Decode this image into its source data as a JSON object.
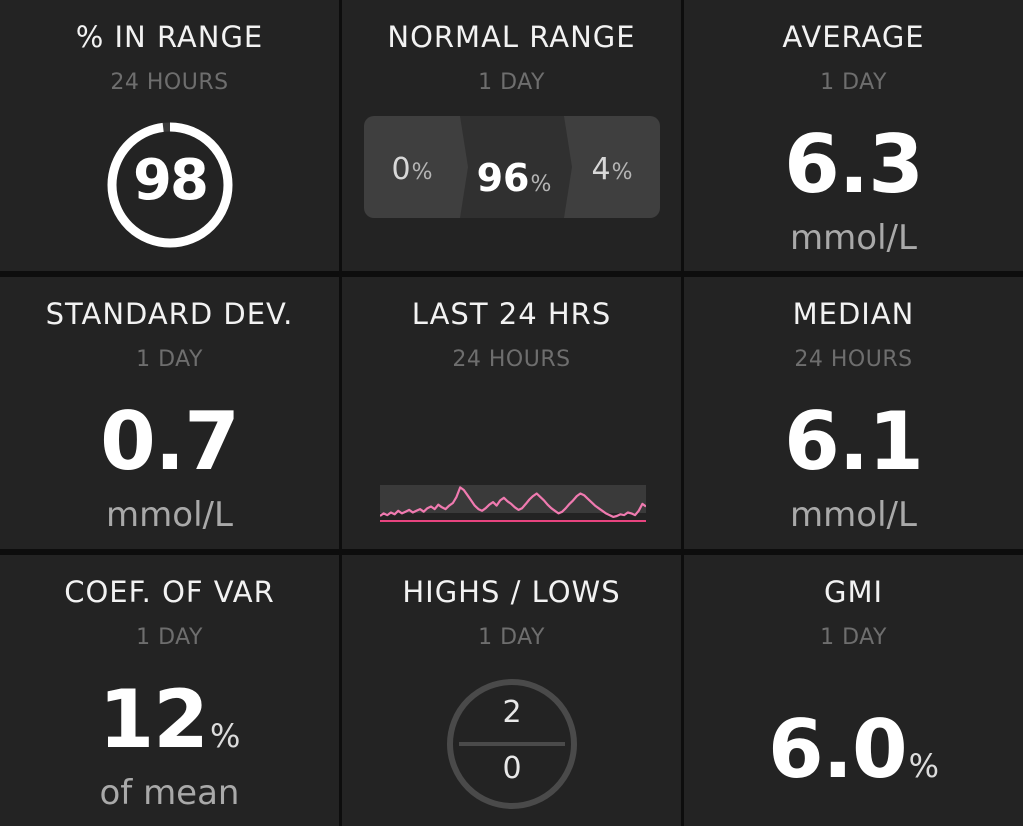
{
  "tiles": {
    "in_range": {
      "title": "% IN RANGE",
      "subtitle": "24 HOURS",
      "value": "98",
      "fraction": 0.98
    },
    "normal_range": {
      "title": "NORMAL RANGE",
      "subtitle": "1 DAY",
      "low_value": "0",
      "in_value": "96",
      "high_value": "4",
      "pct_symbol": "%"
    },
    "average": {
      "title": "AVERAGE",
      "subtitle": "1 DAY",
      "value": "6.3",
      "unit": "mmol/L"
    },
    "std_dev": {
      "title": "STANDARD DEV.",
      "subtitle": "1 DAY",
      "value": "0.7",
      "unit": "mmol/L"
    },
    "last24": {
      "title": "LAST 24 HRS",
      "subtitle": "24 HOURS",
      "series_color": "#f07ab0",
      "range_band_color": "#3a3a3a",
      "low_line_color": "#e8447f",
      "trace": [
        4.0,
        4.3,
        4.1,
        4.4,
        4.2,
        4.6,
        4.3,
        4.5,
        4.7,
        4.4,
        4.6,
        4.8,
        4.5,
        4.9,
        5.1,
        4.8,
        5.3,
        5.0,
        4.8,
        5.2,
        5.5,
        6.2,
        7.3,
        7.0,
        6.4,
        5.8,
        5.2,
        4.8,
        4.6,
        4.9,
        5.3,
        5.6,
        5.2,
        5.8,
        6.1,
        5.7,
        5.4,
        5.0,
        4.7,
        4.9,
        5.4,
        5.9,
        6.3,
        6.6,
        6.2,
        5.8,
        5.3,
        4.9,
        4.6,
        4.3,
        4.5,
        4.9,
        5.4,
        5.8,
        6.3,
        6.6,
        6.4,
        6.0,
        5.6,
        5.2,
        4.9,
        4.6,
        4.3,
        4.1,
        3.9,
        4.0,
        4.2,
        4.1,
        4.4,
        4.3,
        4.1,
        4.6,
        5.4,
        5.1
      ]
    },
    "median": {
      "title": "MEDIAN",
      "subtitle": "24 HOURS",
      "value": "6.1",
      "unit": "mmol/L"
    },
    "coef_var": {
      "title": "COEF. OF VAR",
      "subtitle": "1 DAY",
      "value": "12",
      "pct_symbol": "%",
      "unit": "of mean"
    },
    "highs_lows": {
      "title": "HIGHS / LOWS",
      "subtitle": "1 DAY",
      "highs": "2",
      "lows": "0"
    },
    "gmi": {
      "title": "GMI",
      "subtitle": "1 DAY",
      "value": "6.0",
      "pct_symbol": "%"
    }
  }
}
